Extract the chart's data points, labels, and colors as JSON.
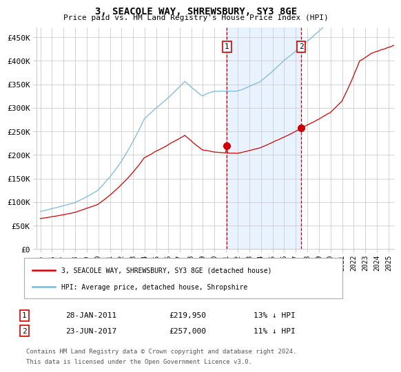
{
  "title": "3, SEACOLE WAY, SHREWSBURY, SY3 8GE",
  "subtitle": "Price paid vs. HM Land Registry's House Price Index (HPI)",
  "legend_line1": "3, SEACOLE WAY, SHREWSBURY, SY3 8GE (detached house)",
  "legend_line2": "HPI: Average price, detached house, Shropshire",
  "annotation1": {
    "label": "1",
    "date_str": "28-JAN-2011",
    "price_str": "£219,950",
    "pct_str": "13% ↓ HPI",
    "year": 2011.08
  },
  "annotation2": {
    "label": "2",
    "date_str": "23-JUN-2017",
    "price_str": "£257,000",
    "pct_str": "11% ↓ HPI",
    "year": 2017.47
  },
  "footnote1": "Contains HM Land Registry data © Crown copyright and database right 2024.",
  "footnote2": "This data is licensed under the Open Government Licence v3.0.",
  "hpi_color": "#7ab8d9",
  "price_color": "#cc0000",
  "annotation_color": "#cc0000",
  "bg_shade_color": "#ddeeff",
  "grid_color": "#cccccc",
  "year_start": 1995,
  "year_end": 2025.5,
  "ylim_bottom": 0,
  "ylim_top": 470000,
  "yticks": [
    0,
    50000,
    100000,
    150000,
    200000,
    250000,
    300000,
    350000,
    400000,
    450000
  ],
  "xtick_years": [
    1995,
    1996,
    1997,
    1998,
    1999,
    2000,
    2001,
    2002,
    2003,
    2004,
    2005,
    2006,
    2007,
    2008,
    2009,
    2010,
    2011,
    2012,
    2013,
    2014,
    2015,
    2016,
    2017,
    2018,
    2019,
    2020,
    2021,
    2022,
    2023,
    2024,
    2025
  ]
}
